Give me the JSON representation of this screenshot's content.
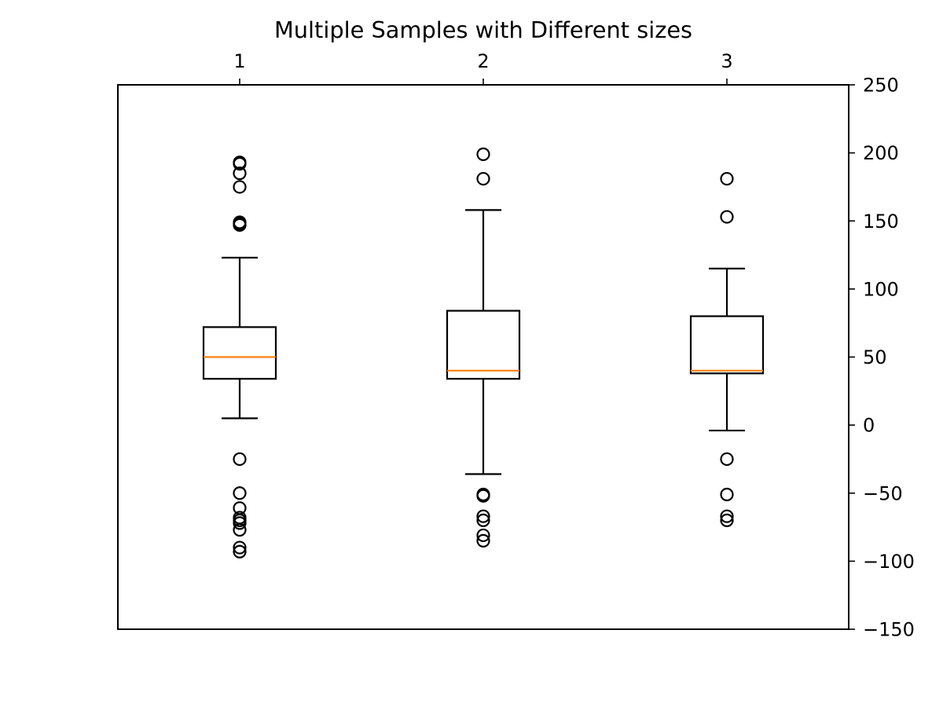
{
  "chart_data": {
    "type": "boxplot",
    "title": "Multiple Samples with Different sizes",
    "xlabel": "",
    "ylabel": "",
    "x_axis_position": "top",
    "y_axis_position": "right",
    "ylim": [
      -150,
      250
    ],
    "yticks": [
      250,
      200,
      150,
      100,
      50,
      0,
      -50,
      -100,
      -150
    ],
    "ytick_labels": [
      "250",
      "200",
      "150",
      "100",
      "50",
      "0",
      "−50",
      "−100",
      "−150"
    ],
    "grid": false,
    "colors": {
      "box": "#000000",
      "median": "#ff7f0e",
      "flier": "#000000"
    },
    "categories": [
      "1",
      "2",
      "3"
    ],
    "boxes": [
      {
        "label": "1",
        "whislo": 5,
        "q1": 34,
        "median": 50,
        "q3": 72,
        "whishi": 123,
        "fliers": [
          193,
          192,
          185,
          175,
          149,
          148,
          147,
          -25,
          -50,
          -61,
          -68,
          -70,
          -72,
          -77,
          -90,
          -93
        ]
      },
      {
        "label": "2",
        "whislo": -36,
        "q1": 34,
        "median": 40,
        "q3": 84,
        "whishi": 158,
        "fliers": [
          199,
          181,
          -51,
          -52,
          -67,
          -70,
          -81,
          -85
        ]
      },
      {
        "label": "3",
        "whislo": -4,
        "q1": 38,
        "median": 40,
        "q3": 80,
        "whishi": 115,
        "fliers": [
          181,
          153,
          -25,
          -51,
          -67,
          -70
        ]
      }
    ]
  }
}
